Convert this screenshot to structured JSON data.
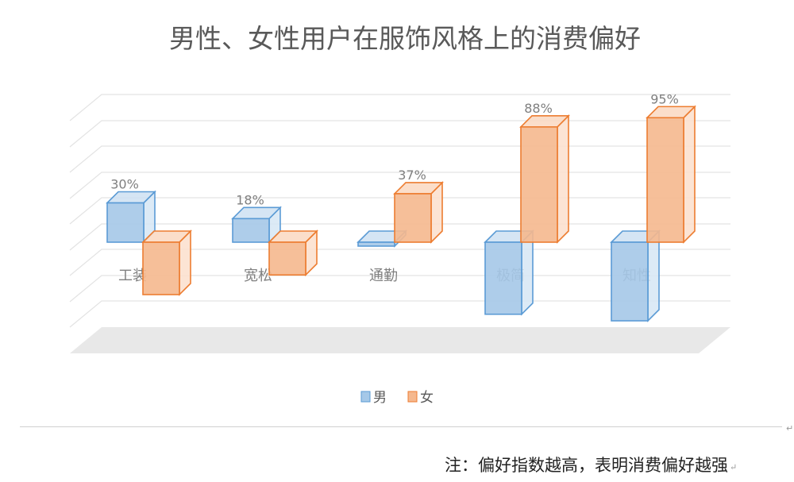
{
  "chart_data": {
    "type": "bar",
    "title": "男性、女性用户在服饰风格上的消费偏好",
    "categories": [
      "工装",
      "宽松",
      "通勤",
      "极简",
      "知性"
    ],
    "series": [
      {
        "name": "男",
        "values": [
          30,
          18,
          -3,
          -55,
          -60
        ],
        "labels": [
          "30%",
          "18%",
          "",
          "",
          ""
        ],
        "color": "#5b9bd5"
      },
      {
        "name": "女",
        "values": [
          -40,
          -25,
          37,
          88,
          95
        ],
        "labels": [
          "",
          "",
          "37%",
          "88%",
          "95%"
        ],
        "color": "#ed7d31"
      }
    ],
    "legend_position": "bottom",
    "grid": true
  },
  "note": "注：偏好指数越高，表明消费偏好越强",
  "colors": {
    "male": "#5b9bd5",
    "female": "#ed7d31"
  }
}
